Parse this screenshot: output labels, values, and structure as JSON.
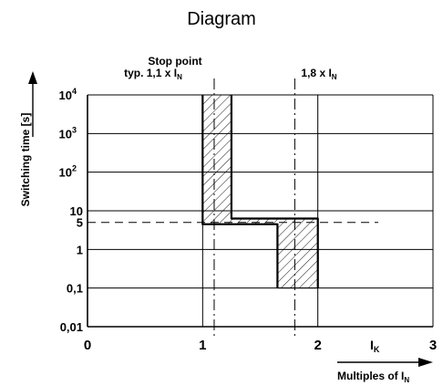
{
  "chart_data": {
    "type": "line",
    "title": "Diagram",
    "x_axis": {
      "label_main": "Multiples of I",
      "label_sub": "N",
      "range": [
        0,
        3
      ],
      "ticks": [
        "0",
        "1",
        "2",
        "3"
      ],
      "inline_label_main": "I",
      "inline_label_sub": "K"
    },
    "y_axis": {
      "label": "Switching time [s]",
      "scale": "log",
      "ticks": [
        {
          "value": 0.01,
          "label": "0,01"
        },
        {
          "value": 0.1,
          "label": "0,1"
        },
        {
          "value": 1,
          "label": "1"
        },
        {
          "value": 5,
          "label": "5"
        },
        {
          "value": 10,
          "label": "10"
        },
        {
          "value": 100,
          "label": "10",
          "sup": "2"
        },
        {
          "value": 1000,
          "label": "10",
          "sup": "3"
        },
        {
          "value": 10000,
          "label": "10",
          "sup": "4"
        }
      ]
    },
    "band": {
      "left_edge": [
        {
          "x": 1.0,
          "y": 10000
        },
        {
          "x": 1.0,
          "y": 4.5
        },
        {
          "x": 1.65,
          "y": 4.5
        },
        {
          "x": 1.65,
          "y": 0.1
        }
      ],
      "right_edge": [
        {
          "x": 1.25,
          "y": 10000
        },
        {
          "x": 1.25,
          "y": 6.3
        },
        {
          "x": 2.0,
          "y": 6.3
        },
        {
          "x": 2.0,
          "y": 0.1
        }
      ]
    },
    "reference_lines": [
      {
        "axis": "x",
        "value": 1.1,
        "label_main": "typ. 1,1 x I",
        "label_sub": "N",
        "label_top": "Stop point"
      },
      {
        "axis": "x",
        "value": 1.8,
        "label_main": "1,8 x I",
        "label_sub": "N"
      },
      {
        "axis": "y",
        "value": 5
      }
    ],
    "grid": true
  }
}
